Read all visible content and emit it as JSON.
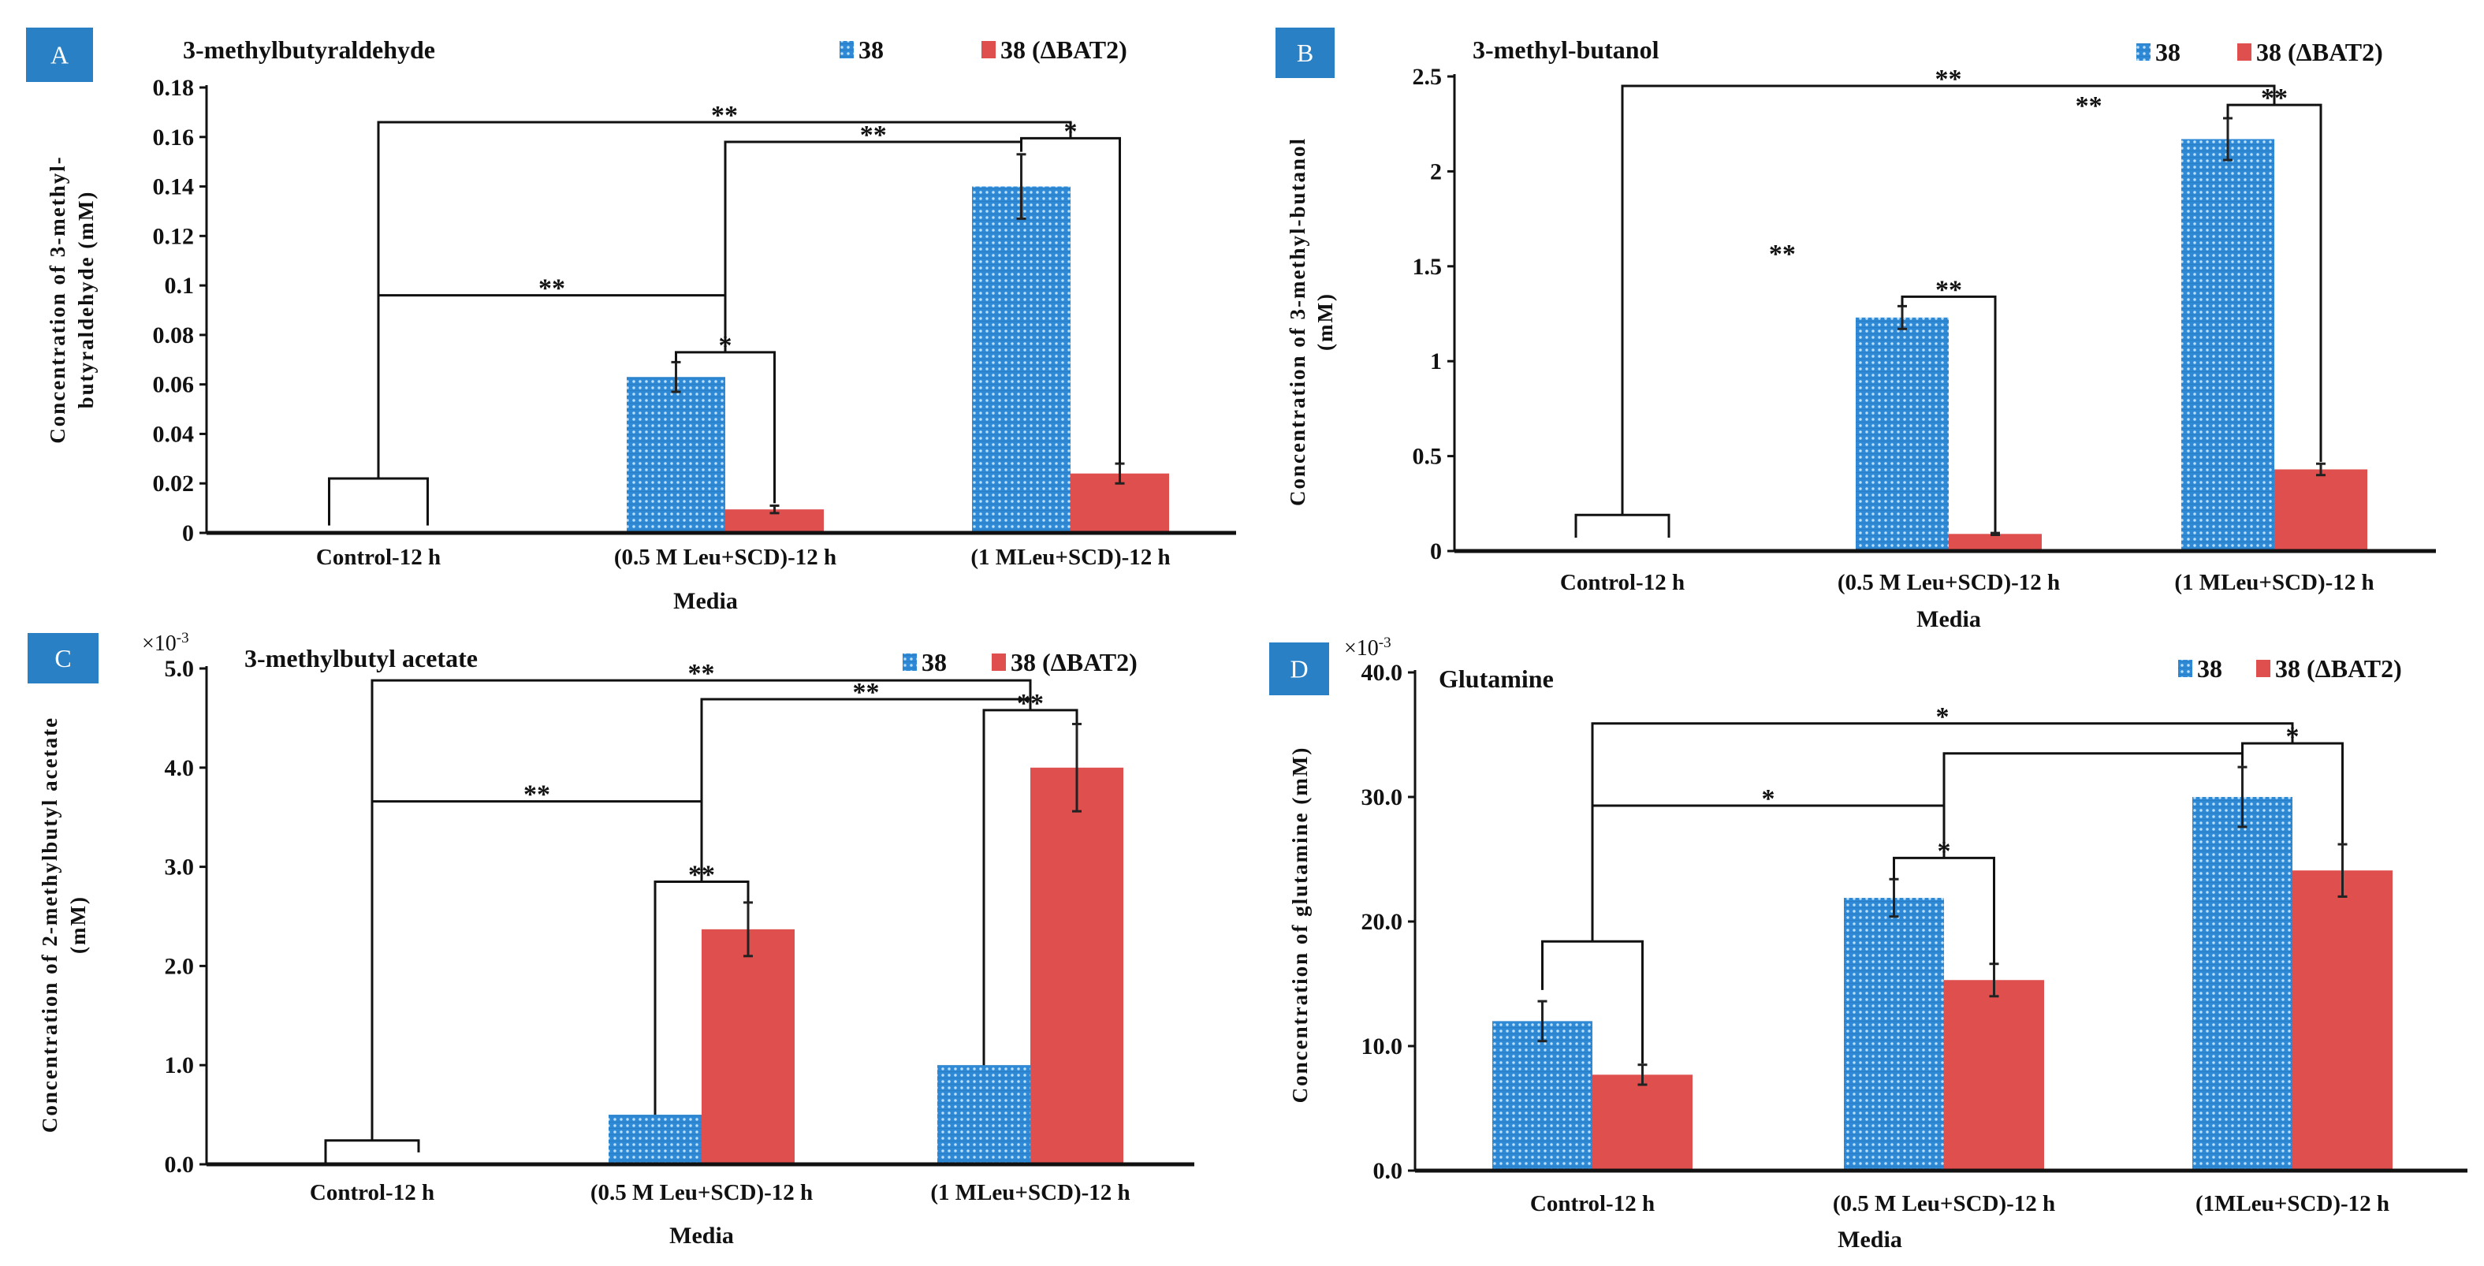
{
  "colors": {
    "series_38": "#2E8AD6",
    "series_dBAT2": "#DE4F4E",
    "badge": "#2A80C4"
  },
  "chart_data": [
    {
      "panel": "A",
      "type": "bar",
      "title": "3-methylbutyraldehyde",
      "categories": [
        "Control-12 h",
        "(0.5 M Leu+SCD)-12 h",
        "(1 MLeu+SCD)-12 h"
      ],
      "xlabel": "Media",
      "ylabel_lines": [
        "Concentration of 3-methyl-",
        "butyraldehyde (mM)"
      ],
      "multiplier": null,
      "ylim": [
        0,
        0.18
      ],
      "yticks": [
        0,
        0.02,
        0.04,
        0.06,
        0.08,
        0.1,
        0.12,
        0.14,
        0.16,
        0.18
      ],
      "ytick_labels": [
        "0",
        "0.02",
        "0.04",
        "0.06",
        "0.08",
        "0.1",
        "0.12",
        "0.14",
        "0.16",
        "0.18"
      ],
      "series": [
        {
          "name": "38",
          "values": [
            0,
            0.063,
            0.14
          ],
          "errors": [
            0,
            0.006,
            0.013
          ]
        },
        {
          "name": "38 (ΔBAT2)",
          "values": [
            0,
            0.0095,
            0.024
          ],
          "errors": [
            0,
            0.0015,
            0.004
          ]
        }
      ],
      "annotations": [
        {
          "label": "",
          "from": "g0s0",
          "to": "g0s1",
          "from_bottom": 0.003,
          "to_bottom": 0.003,
          "top": 0.022
        },
        {
          "label": "*",
          "from": "g1s0",
          "to": "g1s1",
          "from_bottom": 0.069,
          "to_bottom": 0.012,
          "top": 0.073
        },
        {
          "label": "**",
          "from": "g0",
          "to": "g1",
          "from_bottom": 0.022,
          "to_bottom": 0.073,
          "top": 0.096
        },
        {
          "label": "**",
          "from": "g1",
          "to": "g2s0",
          "from_bottom": 0.096,
          "to_bottom": 0.159,
          "top": 0.158
        },
        {
          "label": "*",
          "from": "g2s0",
          "to": "g2s1",
          "from_bottom": 0.154,
          "to_bottom": 0.028,
          "top": 0.1595
        },
        {
          "label": "**",
          "from": "g0",
          "to": "g2",
          "from_bottom": 0.096,
          "to_bottom": 0.1595,
          "top": 0.166
        }
      ],
      "floating_labels": []
    },
    {
      "panel": "B",
      "type": "bar",
      "title": "3-methyl-butanol",
      "categories": [
        "Control-12 h",
        "(0.5 M Leu+SCD)-12 h",
        "(1 MLeu+SCD)-12 h"
      ],
      "xlabel": "Media",
      "ylabel_lines": [
        "Concentration of 3-methyl-butanol",
        "(mM)"
      ],
      "multiplier": null,
      "ylim": [
        0,
        2.5
      ],
      "yticks": [
        0,
        0.5,
        1,
        1.5,
        2,
        2.5
      ],
      "ytick_labels": [
        "0",
        "0.5",
        "1",
        "1.5",
        "2",
        "2.5"
      ],
      "series": [
        {
          "name": "38",
          "values": [
            0,
            1.23,
            2.17
          ],
          "errors": [
            0,
            0.06,
            0.11
          ]
        },
        {
          "name": "38 (ΔBAT2)",
          "values": [
            0,
            0.09,
            0.43
          ],
          "errors": [
            0,
            0.005,
            0.03
          ]
        }
      ],
      "annotations": [
        {
          "label": "",
          "from": "g0s0",
          "to": "g0s1",
          "from_bottom": 0.07,
          "to_bottom": 0.07,
          "top": 0.19
        },
        {
          "label": "**",
          "from": "g1s0",
          "to": "g1s1",
          "from_bottom": 1.29,
          "to_bottom": 0.1,
          "top": 1.34
        },
        {
          "label": "**",
          "from": "g2s0",
          "to": "g2s1",
          "from_bottom": 2.28,
          "to_bottom": 0.47,
          "top": 2.35
        },
        {
          "label": "**",
          "from": "g0",
          "to": "g2",
          "from_bottom": 0.19,
          "to_bottom": 2.35,
          "top": 2.45
        }
      ],
      "floating_labels": [
        {
          "label": "**",
          "category_pos": 0.49,
          "y": 1.52
        },
        {
          "label": "**",
          "category_pos": 1.43,
          "y": 2.3
        }
      ]
    },
    {
      "panel": "C",
      "type": "bar",
      "title": "3-methylbutyl acetate",
      "categories": [
        "Control-12 h",
        "(0.5 M Leu+SCD)-12 h",
        "(1 MLeu+SCD)-12 h"
      ],
      "xlabel": "Media",
      "ylabel_lines": [
        "Concentration of 2-methylbutyl acetate",
        "(mM)"
      ],
      "multiplier": {
        "base": "×10",
        "exp": "-3"
      },
      "ylim": [
        0,
        5.0
      ],
      "yticks": [
        0,
        1,
        2,
        3,
        4,
        5
      ],
      "ytick_labels": [
        "0.0",
        "1.0",
        "2.0",
        "3.0",
        "4.0",
        "5.0"
      ],
      "series": [
        {
          "name": "38",
          "values": [
            0,
            0.5,
            1.0
          ],
          "errors": [
            0,
            0,
            0
          ]
        },
        {
          "name": "38 (ΔBAT2)",
          "values": [
            0,
            2.37,
            4.0
          ],
          "errors": [
            0,
            0.27,
            0.44
          ]
        }
      ],
      "annotations": [
        {
          "label": "",
          "from": "g0s0",
          "to": "g0s1",
          "from_bottom": 0.02,
          "to_bottom": 0.12,
          "top": 0.24
        },
        {
          "label": "**",
          "from": "g1s0",
          "to": "g1s1",
          "from_bottom": 0.5,
          "to_bottom": 2.65,
          "top": 2.85
        },
        {
          "label": "**",
          "from": "g0",
          "to": "g1",
          "from_bottom": 0.24,
          "to_bottom": 2.85,
          "top": 3.66
        },
        {
          "label": "**",
          "from": "g1",
          "to": "g2",
          "from_bottom": 3.66,
          "to_bottom": 4.58,
          "top": 4.69
        },
        {
          "label": "**",
          "from": "g2s0",
          "to": "g2s1",
          "from_bottom": 1.0,
          "to_bottom": 4.45,
          "top": 4.58
        },
        {
          "label": "**",
          "from": "g0",
          "to": "g2",
          "from_bottom": 0.24,
          "to_bottom": 4.58,
          "top": 4.88
        }
      ],
      "floating_labels": []
    },
    {
      "panel": "D",
      "type": "bar",
      "title": "Glutamine",
      "categories": [
        "Control-12 h",
        "(0.5 M Leu+SCD)-12 h",
        "(1MLeu+SCD)-12 h"
      ],
      "xlabel": "Media",
      "ylabel_lines": [
        "Concentration of glutamine (mM)"
      ],
      "multiplier": {
        "base": "×10",
        "exp": "-3"
      },
      "ylim": [
        0,
        40.0
      ],
      "yticks": [
        0,
        10,
        20,
        30,
        40
      ],
      "ytick_labels": [
        "0.0",
        "10.0",
        "20.0",
        "30.0",
        "40.0"
      ],
      "series": [
        {
          "name": "38",
          "values": [
            12.0,
            21.9,
            30.0
          ],
          "errors": [
            1.6,
            1.5,
            2.4
          ]
        },
        {
          "name": "38 (ΔBAT2)",
          "values": [
            7.7,
            15.3,
            24.1
          ],
          "errors": [
            0.8,
            1.3,
            2.1
          ]
        }
      ],
      "annotations": [
        {
          "label": "",
          "from": "g0s0",
          "to": "g0s1",
          "from_bottom": 14.5,
          "to_bottom": 8.6,
          "top": 18.4
        },
        {
          "label": "*",
          "from": "g1s0",
          "to": "g1s1",
          "from_bottom": 23.4,
          "to_bottom": 16.6,
          "top": 25.1
        },
        {
          "label": "*",
          "from": "g0",
          "to": "g1",
          "from_bottom": 18.4,
          "to_bottom": 25.1,
          "top": 29.3
        },
        {
          "label": "",
          "from": "g1",
          "to": "g2s0",
          "from_bottom": 29.3,
          "to_bottom": 32.5,
          "top": 33.5
        },
        {
          "label": "*",
          "from": "g2s0",
          "to": "g2s1",
          "from_bottom": 32.5,
          "to_bottom": 26.3,
          "top": 34.3
        },
        {
          "label": "*",
          "from": "g0",
          "to": "g2",
          "from_bottom": 18.4,
          "to_bottom": 34.3,
          "top": 35.9
        }
      ],
      "floating_labels": []
    }
  ]
}
